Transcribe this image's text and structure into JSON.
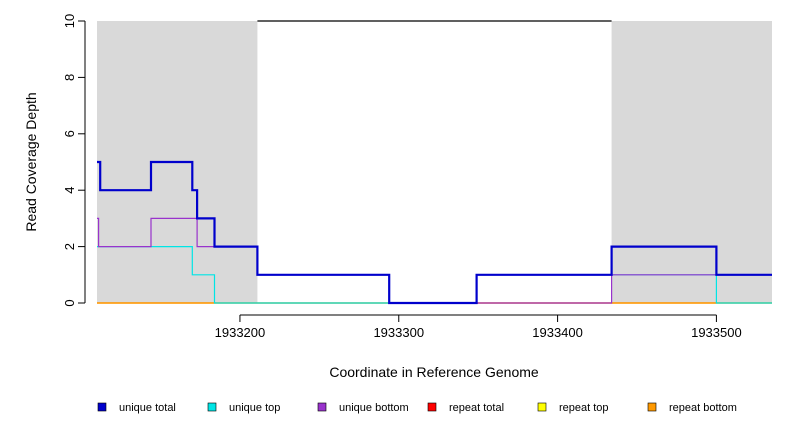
{
  "chart_data": {
    "type": "line",
    "subtype": "step",
    "xlabel": "Coordinate in Reference Genome",
    "ylabel": "Read Coverage Depth",
    "xlim": [
      1933110,
      1933535
    ],
    "ylim": [
      0,
      10
    ],
    "x_ticks": [
      1933200,
      1933300,
      1933400,
      1933500
    ],
    "y_ticks": [
      0,
      2,
      4,
      6,
      8,
      10
    ],
    "shaded_regions": [
      {
        "x0": 1933110,
        "x1": 1933211,
        "color": "#d9d9d9"
      },
      {
        "x0": 1933434,
        "x1": 1933535,
        "color": "#d9d9d9"
      }
    ],
    "top_line": {
      "x0": 1933211,
      "x1": 1933434,
      "y": 10,
      "color": "#000000"
    },
    "series": [
      {
        "name": "repeat total",
        "color": "#ff0000",
        "points": [
          [
            1933110,
            0
          ],
          [
            1933535,
            0
          ]
        ]
      },
      {
        "name": "repeat top",
        "color": "#ffff00",
        "points": [
          [
            1933110,
            0
          ],
          [
            1933535,
            0
          ]
        ]
      },
      {
        "name": "repeat bottom",
        "color": "#ff9900",
        "points": [
          [
            1933110,
            0
          ],
          [
            1933535,
            0
          ]
        ]
      },
      {
        "name": "unique top",
        "color": "#00e5e5",
        "points": [
          [
            1933110,
            2
          ],
          [
            1933170,
            2
          ],
          [
            1933170,
            1
          ],
          [
            1933184,
            1
          ],
          [
            1933184,
            0
          ],
          [
            1933349,
            0
          ],
          [
            1933349,
            1
          ],
          [
            1933500,
            1
          ],
          [
            1933500,
            0
          ],
          [
            1933535,
            0
          ]
        ]
      },
      {
        "name": "unique bottom",
        "color": "#9933cc",
        "points": [
          [
            1933110,
            3
          ],
          [
            1933111,
            3
          ],
          [
            1933111,
            2
          ],
          [
            1933144,
            2
          ],
          [
            1933144,
            3
          ],
          [
            1933173,
            3
          ],
          [
            1933173,
            2
          ],
          [
            1933211,
            2
          ],
          [
            1933211,
            1
          ],
          [
            1933294,
            1
          ],
          [
            1933294,
            0
          ],
          [
            1933434,
            0
          ],
          [
            1933434,
            1
          ],
          [
            1933535,
            1
          ]
        ]
      },
      {
        "name": "unique total",
        "color": "#0000cc",
        "points": [
          [
            1933110,
            5
          ],
          [
            1933112,
            5
          ],
          [
            1933112,
            4
          ],
          [
            1933144,
            4
          ],
          [
            1933144,
            5
          ],
          [
            1933170,
            5
          ],
          [
            1933170,
            4
          ],
          [
            1933173,
            4
          ],
          [
            1933173,
            3
          ],
          [
            1933184,
            3
          ],
          [
            1933184,
            2
          ],
          [
            1933211,
            2
          ],
          [
            1933211,
            1
          ],
          [
            1933294,
            1
          ],
          [
            1933294,
            0
          ],
          [
            1933349,
            0
          ],
          [
            1933349,
            1
          ],
          [
            1933434,
            1
          ],
          [
            1933434,
            2
          ],
          [
            1933500,
            2
          ],
          [
            1933500,
            1
          ],
          [
            1933535,
            1
          ]
        ]
      }
    ],
    "legend": {
      "position": "bottom",
      "items": [
        {
          "label": "unique total",
          "color": "#0000cc"
        },
        {
          "label": "unique top",
          "color": "#00e5e5"
        },
        {
          "label": "unique bottom",
          "color": "#9933cc"
        },
        {
          "label": "repeat total",
          "color": "#ff0000"
        },
        {
          "label": "repeat top",
          "color": "#ffff00"
        },
        {
          "label": "repeat bottom",
          "color": "#ff9900"
        }
      ]
    }
  }
}
